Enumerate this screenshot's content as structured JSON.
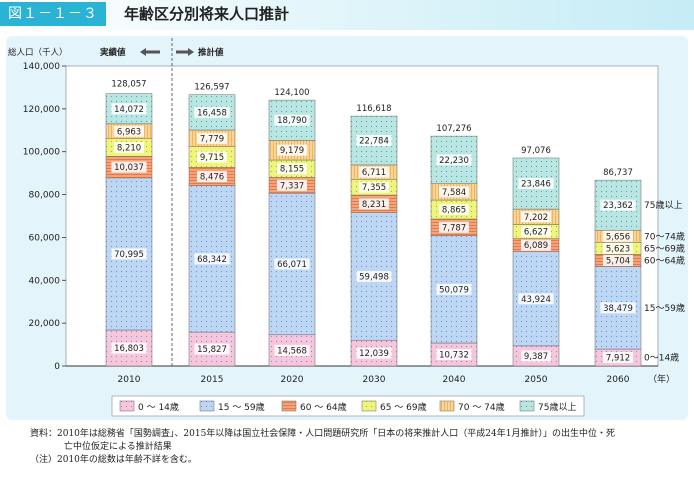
{
  "figure": {
    "number": "図１－１－３",
    "title": "年齢区分別将来人口推計"
  },
  "chart_data": {
    "type": "bar",
    "stacked": true,
    "ylabel": "総人口（千人）",
    "actual_label": "実績値",
    "projection_label": "推計値",
    "year_unit": "（年）",
    "ylim": [
      0,
      140000
    ],
    "yticks": [
      "0",
      "20,000",
      "40,000",
      "60,000",
      "80,000",
      "100,000",
      "120,000",
      "140,000"
    ],
    "categories": [
      "2010",
      "2015",
      "2020",
      "2030",
      "2040",
      "2050",
      "2060"
    ],
    "totals": [
      128057,
      126597,
      124100,
      116618,
      107276,
      97076,
      86737
    ],
    "total_labels": [
      "128,057",
      "126,597",
      "124,100",
      "116,618",
      "107,276",
      "97,076",
      "86,737"
    ],
    "series": [
      {
        "name": "0 ～ 14歳",
        "right_label": "0～14歳",
        "color": "#f7c6dc",
        "values": [
          16803,
          15827,
          14568,
          12039,
          10732,
          9387,
          7912
        ],
        "labels": [
          "16,803",
          "15,827",
          "14,568",
          "12,039",
          "10,732",
          "9,387",
          "7,912"
        ]
      },
      {
        "name": "15 ～ 59歳",
        "right_label": "15～59歳",
        "color": "#bcd6f4",
        "values": [
          70995,
          68342,
          66071,
          59498,
          50079,
          43924,
          38479
        ],
        "labels": [
          "70,995",
          "68,342",
          "66,071",
          "59,498",
          "50,079",
          "43,924",
          "38,479"
        ]
      },
      {
        "name": "60 ～ 64歳",
        "right_label": "60～64歳",
        "color": "#f3a47a",
        "values": [
          10037,
          8476,
          7337,
          8231,
          7787,
          6089,
          5704
        ],
        "labels": [
          "10,037",
          "8,476",
          "7,337",
          "8,231",
          "7,787",
          "6,089",
          "5,704"
        ]
      },
      {
        "name": "65 ～ 69歳",
        "right_label": "65～69歳",
        "color": "#eef57a",
        "values": [
          8210,
          9715,
          8155,
          7355,
          8865,
          6627,
          5623
        ],
        "labels": [
          "8,210",
          "9,715",
          "8,155",
          "7,355",
          "8,865",
          "6,627",
          "5,623"
        ]
      },
      {
        "name": "70 ～ 74歳",
        "right_label": "70～74歳",
        "color": "#fbd597",
        "values": [
          6963,
          7779,
          9179,
          6711,
          7584,
          7202,
          5656
        ],
        "labels": [
          "6,963",
          "7,779",
          "9,179",
          "6,711",
          "7,584",
          "7,202",
          "5,656"
        ]
      },
      {
        "name": "75歳以上",
        "right_label": "75歳以上",
        "color": "#b9e6e2",
        "values": [
          14072,
          16458,
          18790,
          22784,
          22230,
          23846,
          23362
        ],
        "labels": [
          "14,072",
          "16,458",
          "18,790",
          "22,784",
          "22,230",
          "23,846",
          "23,362"
        ]
      }
    ],
    "grid": false,
    "legend_position": "bottom"
  },
  "notes": {
    "source_line1": "資料：2010年は総務省「国勢調査」、2015年以降は国立社会保障・人口問題研究所「日本の将来推計人口（平成24年1月推計）」の出生中位・死",
    "source_line2": "亡中位仮定による推計結果",
    "note_line": "（注）2010年の総数は年齢不詳を含む。"
  }
}
